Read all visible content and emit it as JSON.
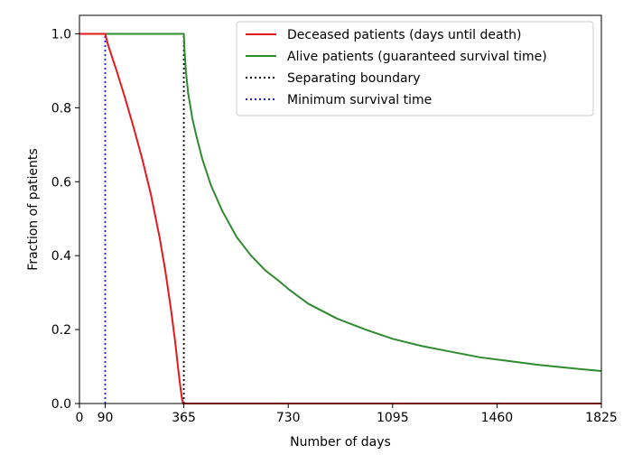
{
  "chart_data": {
    "type": "line",
    "title": "",
    "xlabel": "Number of days",
    "ylabel": "Fraction of patients",
    "xlim": [
      0,
      1825
    ],
    "ylim": [
      0.0,
      1.05
    ],
    "xticks": [
      0,
      90,
      365,
      730,
      1095,
      1460,
      1825
    ],
    "xtick_labels": [
      "0",
      "90",
      "365",
      "730",
      "1095",
      "1460",
      "1825"
    ],
    "yticks": [
      0.0,
      0.2,
      0.4,
      0.6,
      0.8,
      1.0
    ],
    "ytick_labels": [
      "0.0",
      "0.2",
      "0.4",
      "0.6",
      "0.8",
      "1.0"
    ],
    "grid": false,
    "legend_position": "top-right",
    "series": [
      {
        "name": "Deceased patients (days until death)",
        "color": "#e31a1c",
        "style": "solid",
        "x": [
          0,
          90,
          100,
          130,
          160,
          190,
          220,
          250,
          280,
          300,
          320,
          335,
          345,
          352,
          358,
          362,
          365,
          730,
          1095,
          1460,
          1825
        ],
        "y": [
          1.0,
          1.0,
          0.97,
          0.9,
          0.825,
          0.745,
          0.66,
          0.565,
          0.45,
          0.36,
          0.255,
          0.165,
          0.095,
          0.05,
          0.015,
          0.0,
          0.0,
          0.0,
          0.0,
          0.0,
          0.0
        ]
      },
      {
        "name": "Alive patients (guaranteed survival time)",
        "color": "#2e8b2e",
        "style": "solid",
        "x": [
          0,
          365,
          367,
          372,
          380,
          395,
          410,
          430,
          460,
          500,
          550,
          600,
          650,
          700,
          730,
          800,
          900,
          1000,
          1095,
          1200,
          1300,
          1400,
          1500,
          1600,
          1700,
          1825
        ],
        "y": [
          1.0,
          1.0,
          0.96,
          0.9,
          0.84,
          0.77,
          0.72,
          0.66,
          0.59,
          0.52,
          0.45,
          0.4,
          0.36,
          0.33,
          0.31,
          0.27,
          0.23,
          0.2,
          0.175,
          0.155,
          0.14,
          0.125,
          0.115,
          0.105,
          0.097,
          0.088
        ]
      },
      {
        "name": "Separating boundary",
        "color": "#000000",
        "style": "dotted",
        "x": [
          365,
          365
        ],
        "y": [
          0.0,
          1.0
        ]
      },
      {
        "name": "Minimum survival time",
        "color": "#1f1fd6",
        "style": "dotted",
        "x": [
          90,
          90
        ],
        "y": [
          0.0,
          1.0
        ]
      }
    ]
  }
}
